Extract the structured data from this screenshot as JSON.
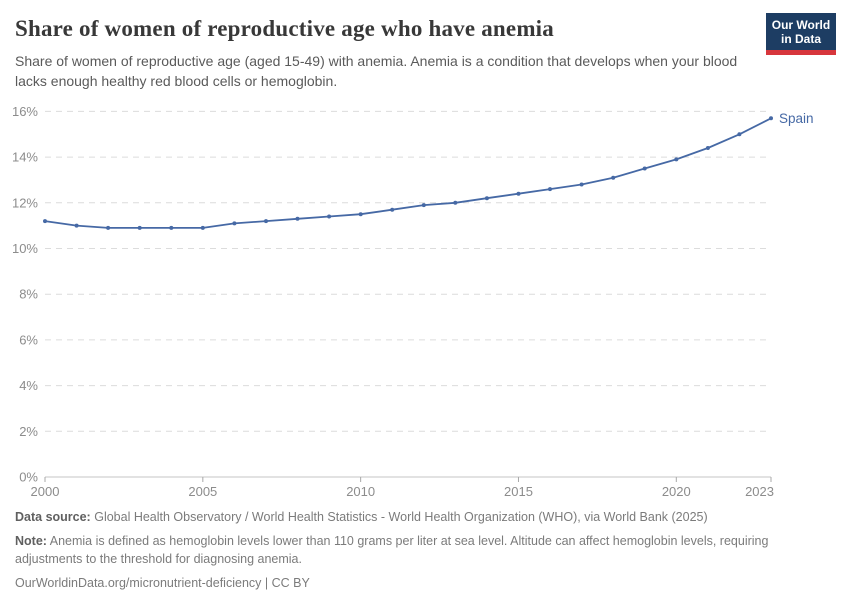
{
  "header": {
    "title": "Share of women of reproductive age who have anemia",
    "subtitle": "Share of women of reproductive age (aged 15-49) with anemia. Anemia is a condition that develops when your blood lacks enough healthy red blood cells or hemoglobin.",
    "logo": {
      "line1": "Our World",
      "line2": "in Data"
    }
  },
  "chart_data": {
    "type": "line",
    "title": "Share of women of reproductive age who have anemia",
    "xlabel": "",
    "ylabel": "",
    "xlim": [
      2000,
      2023
    ],
    "ylim": [
      0,
      16
    ],
    "grid": "dashed-horizontal",
    "legend_position": "end-of-line-label",
    "x_ticks": [
      2000,
      2005,
      2010,
      2015,
      2020,
      2023
    ],
    "y_ticks": [
      0,
      2,
      4,
      6,
      8,
      10,
      12,
      14,
      16
    ],
    "y_tick_suffix": "%",
    "series": [
      {
        "name": "Spain",
        "color": "#4669a5",
        "x": [
          2000,
          2001,
          2002,
          2003,
          2004,
          2005,
          2006,
          2007,
          2008,
          2009,
          2010,
          2011,
          2012,
          2013,
          2014,
          2015,
          2016,
          2017,
          2018,
          2019,
          2020,
          2021,
          2022,
          2023
        ],
        "values": [
          11.2,
          11.0,
          10.9,
          10.9,
          10.9,
          10.9,
          11.1,
          11.2,
          11.3,
          11.4,
          11.5,
          11.7,
          11.9,
          12.0,
          12.2,
          12.4,
          12.6,
          12.8,
          13.1,
          13.5,
          13.9,
          14.4,
          15.0,
          15.7
        ]
      }
    ]
  },
  "footer": {
    "datasource_label": "Data source:",
    "datasource": "Global Health Observatory / World Health Statistics - World Health Organization (WHO), via World Bank (2025)",
    "note_label": "Note:",
    "note": "Anemia is defined as hemoglobin levels lower than 110 grams per liter at sea level. Altitude can affect hemoglobin levels, requiring adjustments to the threshold for diagnosing anemia.",
    "url": "OurWorldinData.org/micronutrient-deficiency",
    "separator": "|",
    "license": "CC BY"
  },
  "colors": {
    "line": "#4669a5",
    "grid": "#dcdcdc",
    "axis": "#c4c4c4",
    "tick": "#a8a8a8",
    "tick_label": "#8c8c8c",
    "logo_bg": "#1d3d63",
    "logo_stripe": "#d7363c"
  }
}
